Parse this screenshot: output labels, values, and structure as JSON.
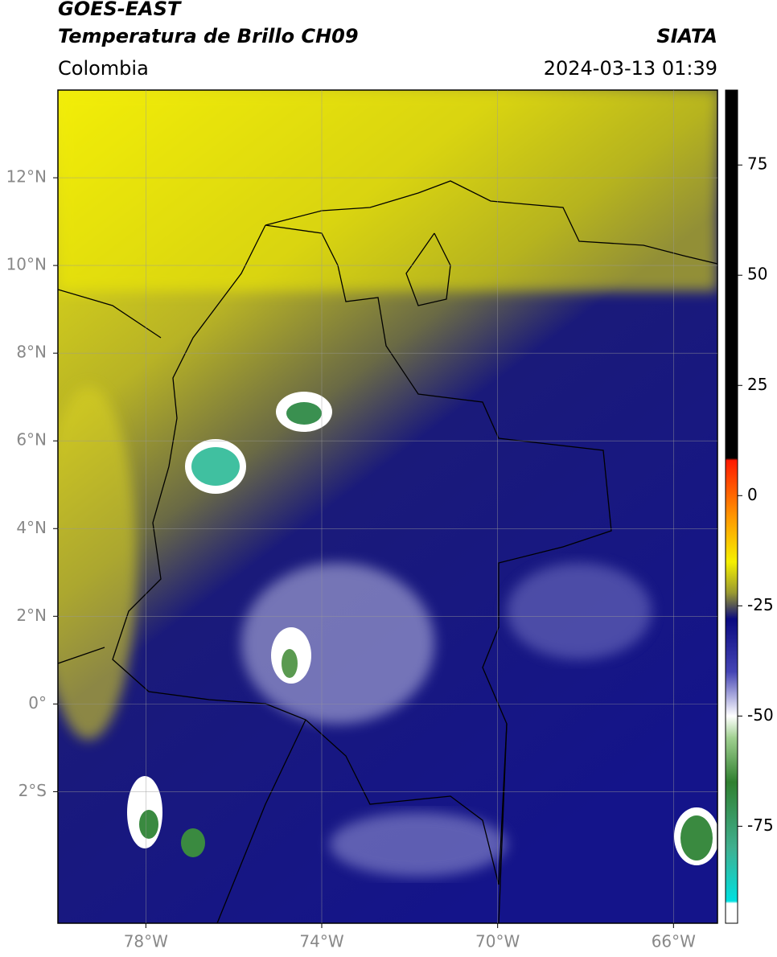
{
  "header": {
    "satellite": "GOES-EAST",
    "product": "Temperatura de Brillo CH09",
    "source": "SIATA",
    "region": "Colombia",
    "timestamp": "2024-03-13 01:39"
  },
  "map": {
    "xlim": [
      -80,
      -65
    ],
    "ylim": [
      -5,
      14
    ],
    "grid": true,
    "xticks": [
      {
        "value": -78,
        "label": "78°W"
      },
      {
        "value": -74,
        "label": "74°W"
      },
      {
        "value": -70,
        "label": "70°W"
      },
      {
        "value": -66,
        "label": "66°W"
      }
    ],
    "yticks": [
      {
        "value": 12,
        "label": "12°N"
      },
      {
        "value": 10,
        "label": "10°N"
      },
      {
        "value": 8,
        "label": "8°N"
      },
      {
        "value": 6,
        "label": "6°N"
      },
      {
        "value": 4,
        "label": "4°N"
      },
      {
        "value": 2,
        "label": "2°N"
      },
      {
        "value": 0,
        "label": "0°"
      },
      {
        "value": -2,
        "label": "2°S"
      }
    ]
  },
  "colorbar": {
    "lim": [
      -97,
      92
    ],
    "ticks": [
      75,
      50,
      25,
      0,
      -25,
      -50,
      -75
    ],
    "stops": [
      {
        "value": 92,
        "color": "#000000"
      },
      {
        "value": 8.5,
        "color": "#000000"
      },
      {
        "value": 8,
        "color": "#ff1a00"
      },
      {
        "value": -5,
        "color": "#ff9900"
      },
      {
        "value": -15,
        "color": "#f5f000"
      },
      {
        "value": -22,
        "color": "#9a9a30"
      },
      {
        "value": -25,
        "color": "#555555"
      },
      {
        "value": -28,
        "color": "#0a0a80"
      },
      {
        "value": -40,
        "color": "#4545b5"
      },
      {
        "value": -50,
        "color": "#ffffff"
      },
      {
        "value": -55,
        "color": "#a0d090"
      },
      {
        "value": -65,
        "color": "#308030"
      },
      {
        "value": -80,
        "color": "#40b090"
      },
      {
        "value": -92,
        "color": "#00e0e0"
      },
      {
        "value": -92.5,
        "color": "#ffffff"
      },
      {
        "value": -97,
        "color": "#ffffff"
      }
    ]
  }
}
